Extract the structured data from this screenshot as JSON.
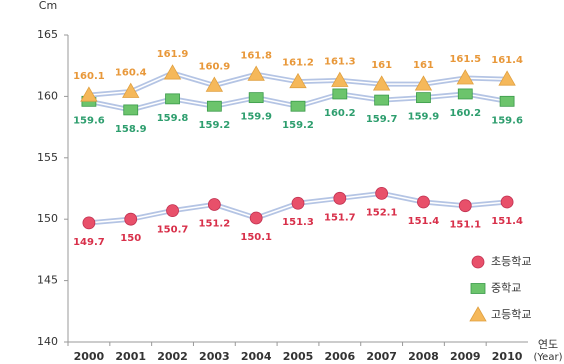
{
  "chart_data": {
    "type": "line",
    "y_label": "Cm",
    "x_label": [
      "연도",
      "(Year)"
    ],
    "categories": [
      "2000",
      "2001",
      "2002",
      "2003",
      "2004",
      "2005",
      "2006",
      "2007",
      "2008",
      "2009",
      "2010"
    ],
    "series": [
      {
        "name": "초등학교",
        "color": "#e8506a",
        "label_color": "#d8304a",
        "marker": "circle",
        "values": [
          149.7,
          150,
          150.7,
          151.2,
          150.1,
          151.3,
          151.7,
          152.1,
          151.4,
          151.1,
          151.4
        ]
      },
      {
        "name": "중학교",
        "color": "#6cc46c",
        "label_color": "#2e9e6e",
        "marker": "square",
        "values": [
          159.6,
          158.9,
          159.8,
          159.2,
          159.9,
          159.2,
          160.2,
          159.7,
          159.9,
          160.2,
          159.6
        ]
      },
      {
        "name": "고등학교",
        "color": "#f5b85a",
        "label_color": "#e8983a",
        "marker": "triangle",
        "values": [
          160.1,
          160.4,
          161.9,
          160.9,
          161.8,
          161.2,
          161.3,
          161,
          161,
          161.5,
          161.4
        ]
      }
    ],
    "line_color": "#b4c4e4",
    "ylim": [
      140,
      165
    ],
    "yticks": [
      140,
      145,
      150,
      155,
      160,
      165
    ],
    "grid": false,
    "legend": "lower right"
  }
}
